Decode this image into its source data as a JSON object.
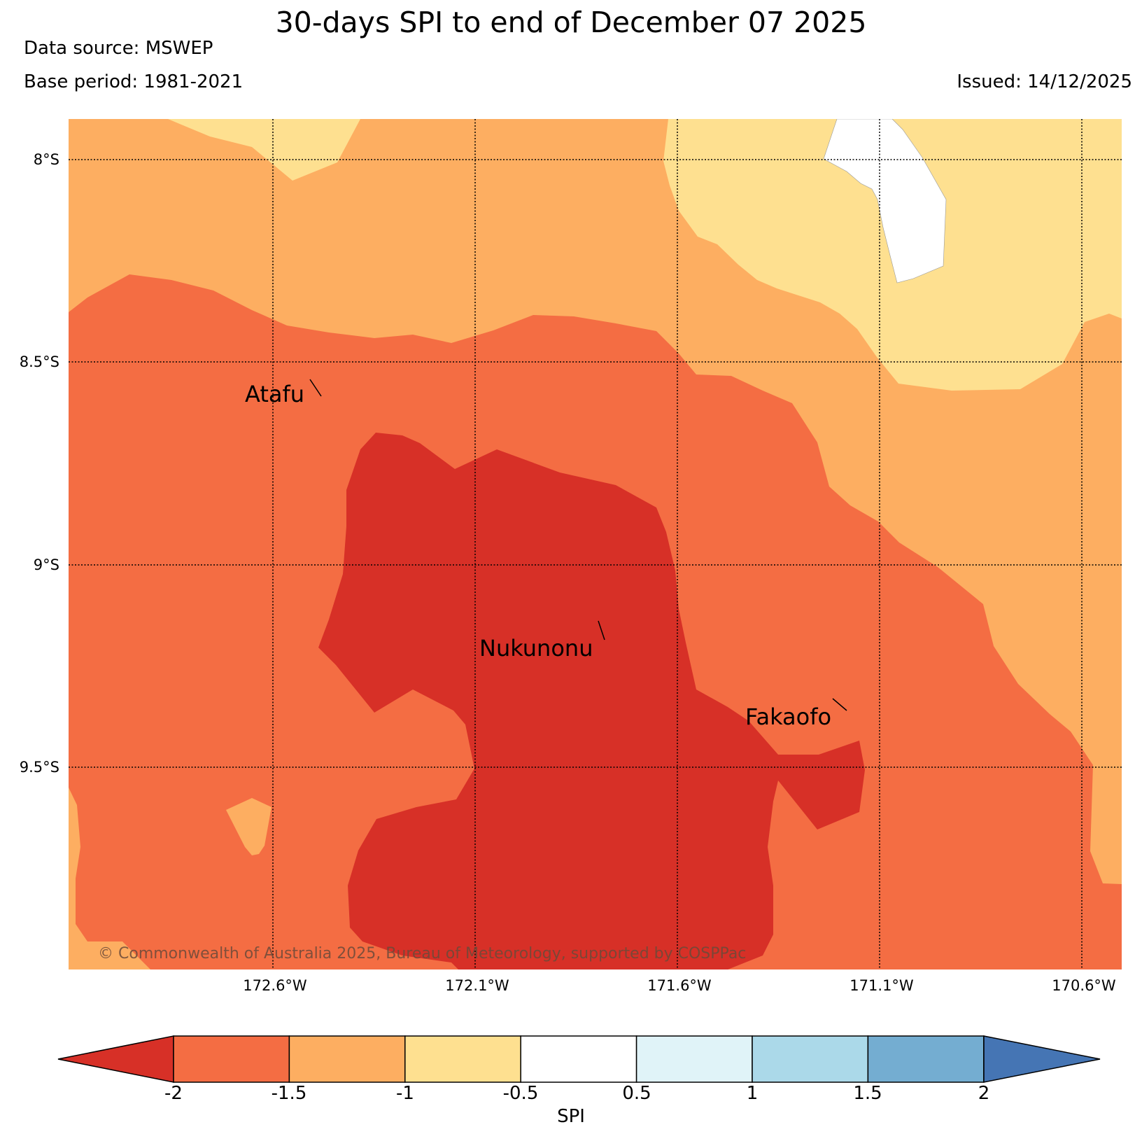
{
  "header": {
    "title": "30-days SPI to end of December 07 2025",
    "data_source": "Data source: MSWEP",
    "base_period": "Base period: 1981-2021",
    "issued": "Issued: 14/12/2025"
  },
  "map": {
    "lat_labels": [
      "8°S",
      "8.5°S",
      "9°S",
      "9.5°S"
    ],
    "lon_labels": [
      "172.6°W",
      "172.1°W",
      "171.6°W",
      "171.1°W",
      "170.6°W"
    ],
    "places": [
      {
        "name": "Atafu"
      },
      {
        "name": "Nukunonu"
      },
      {
        "name": "Fakaofo"
      }
    ],
    "copyright": "© Commonwealth of Australia 2025, Bureau of Meteorology, supported by COSPPac"
  },
  "colorbar": {
    "label": "SPI",
    "ticks": [
      "-2",
      "-1.5",
      "-1",
      "-0.5",
      "0.5",
      "1",
      "1.5",
      "2"
    ],
    "colors": {
      "below_-2": "#d73027",
      "-2_-1.5": "#f46d43",
      "-1.5_-1": "#fdae61",
      "-1_-0.5": "#fee090",
      "-0.5_0.5": "#ffffff",
      "0.5_1": "#e0f3f8",
      "1_1.5": "#abd9e9",
      "1.5_2": "#74add1",
      "above_2": "#4575b4"
    }
  }
}
